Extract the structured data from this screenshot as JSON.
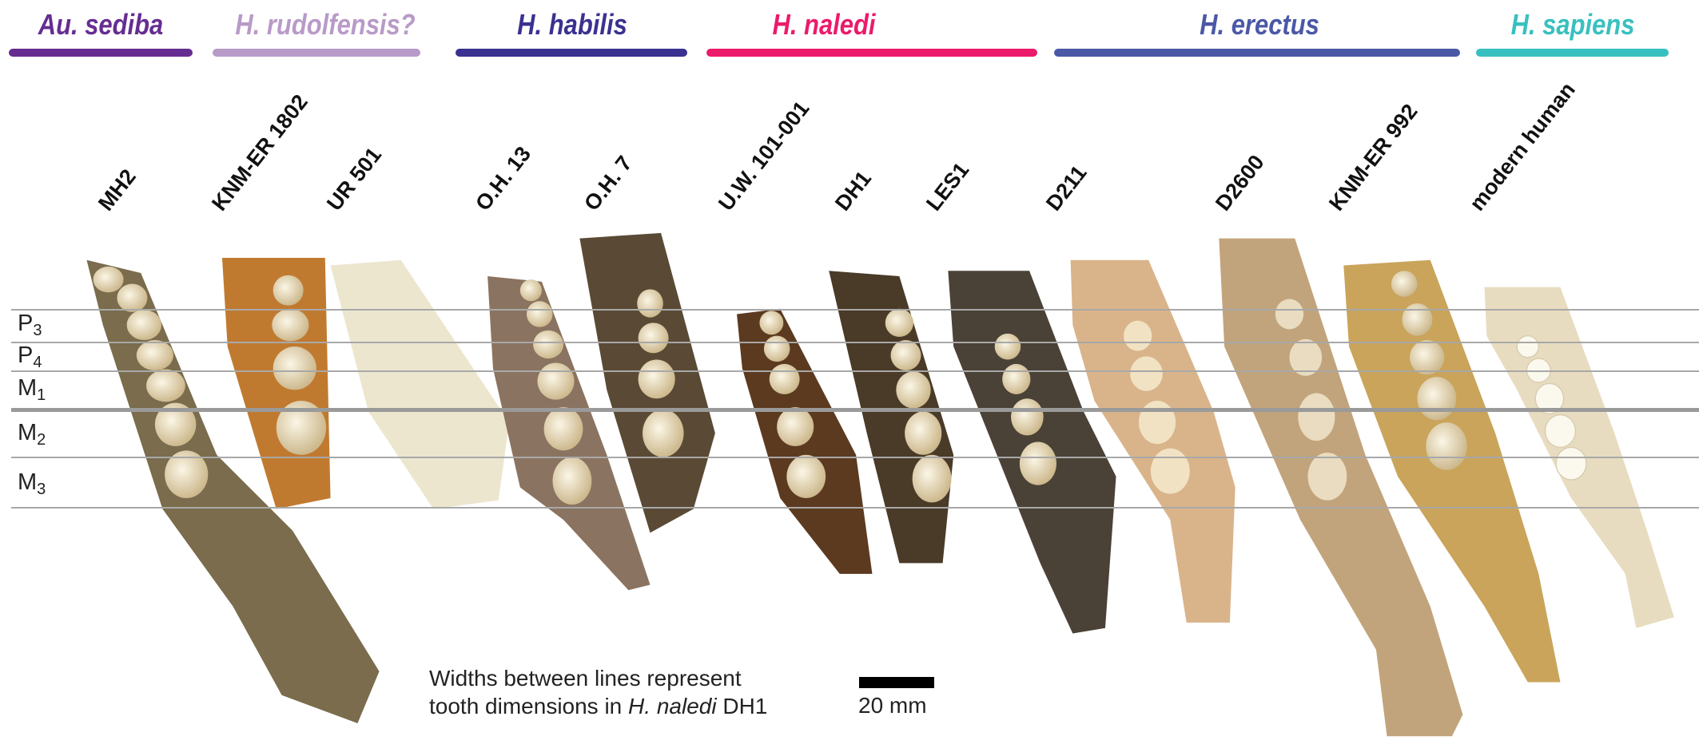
{
  "species": [
    {
      "name": "Au. sediba",
      "color": "#662d91"
    },
    {
      "name": "H. rudolfensis?",
      "color": "#b89ac8"
    },
    {
      "name": "H. habilis",
      "color": "#3a3190"
    },
    {
      "name": "H. naledi",
      "color": "#ec1a6b"
    },
    {
      "name": "H. erectus",
      "color": "#4a58a6"
    },
    {
      "name": "H. sapiens",
      "color": "#38c0c0"
    }
  ],
  "specimens": [
    "MH2",
    "KNM-ER 1802",
    "UR 501",
    "O.H. 13",
    "O.H. 7",
    "U.W. 101-001",
    "DH1",
    "LES1",
    "D211",
    "D2600",
    "KNM-ER 992",
    "modern human"
  ],
  "tooth_rows": [
    {
      "letter": "P",
      "index": "3"
    },
    {
      "letter": "P",
      "index": "4"
    },
    {
      "letter": "M",
      "index": "1"
    },
    {
      "letter": "M",
      "index": "2"
    },
    {
      "letter": "M",
      "index": "3"
    }
  ],
  "caption": {
    "line1": "Widths between lines represent",
    "line2_prefix": "tooth dimensions in ",
    "line2_italic": "H. naledi",
    "line2_suffix": " DH1"
  },
  "scale_bar": {
    "label": "20 mm"
  }
}
